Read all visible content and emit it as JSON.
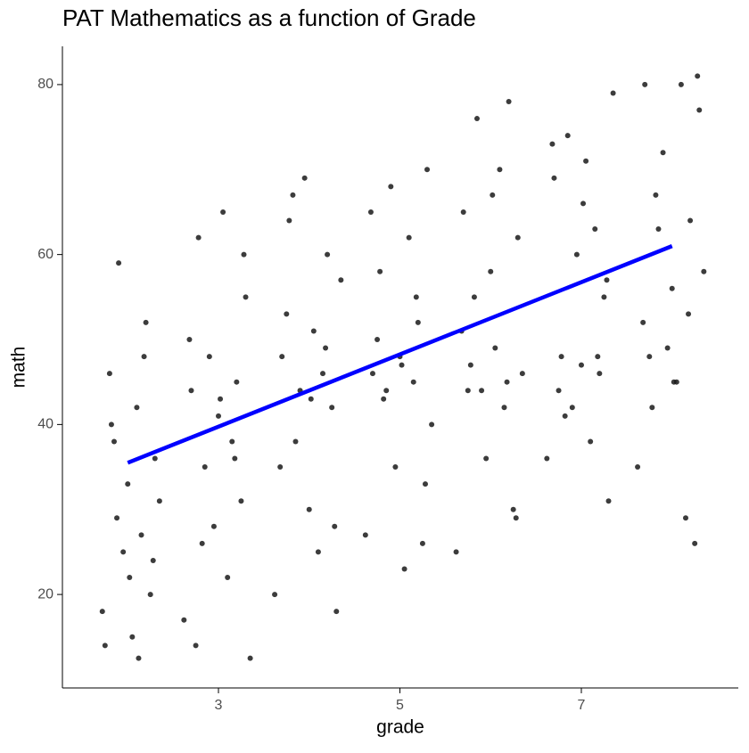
{
  "chart_data": {
    "type": "scatter",
    "title": "PAT Mathematics as a function of Grade",
    "x_label": "grade",
    "y_label": "math",
    "xlim": [
      1.28,
      8.73
    ],
    "ylim": [
      9,
      84.5
    ],
    "xticks": [
      3,
      5,
      7
    ],
    "yticks": [
      20,
      40,
      60,
      80
    ],
    "points": {
      "color": "#1a1a1a",
      "x": [
        1.72,
        1.8,
        1.85,
        1.9,
        1.95,
        2.0,
        2.05,
        2.1,
        2.15,
        2.2,
        2.25,
        2.3,
        2.35,
        1.75,
        1.88,
        2.02,
        2.18,
        2.28,
        1.82,
        2.12,
        2.62,
        2.7,
        2.78,
        2.85,
        2.9,
        2.95,
        3.0,
        3.05,
        3.1,
        3.15,
        3.2,
        3.25,
        3.3,
        3.35,
        2.68,
        2.82,
        3.02,
        3.18,
        3.28,
        2.75,
        3.62,
        3.7,
        3.78,
        3.85,
        3.9,
        3.95,
        4.0,
        4.05,
        4.1,
        4.15,
        4.2,
        4.25,
        4.3,
        4.35,
        3.68,
        3.82,
        4.02,
        4.18,
        4.28,
        3.75,
        4.62,
        4.7,
        4.78,
        4.85,
        4.9,
        4.95,
        5.0,
        5.05,
        5.1,
        5.15,
        5.2,
        5.25,
        5.3,
        5.35,
        4.68,
        4.82,
        5.02,
        5.18,
        5.28,
        4.75,
        5.62,
        5.7,
        5.78,
        5.85,
        5.9,
        5.95,
        6.0,
        6.05,
        6.1,
        6.15,
        6.2,
        6.25,
        6.3,
        6.35,
        5.68,
        5.82,
        6.02,
        6.18,
        6.28,
        5.75,
        6.62,
        6.7,
        6.78,
        6.85,
        6.9,
        6.95,
        7.0,
        7.05,
        7.1,
        7.15,
        7.2,
        7.25,
        7.3,
        7.35,
        6.68,
        6.82,
        7.02,
        7.18,
        7.28,
        6.75,
        7.62,
        7.7,
        7.78,
        7.85,
        7.9,
        7.95,
        8.0,
        8.05,
        8.1,
        8.15,
        8.2,
        8.25,
        8.3,
        8.35,
        7.68,
        7.82,
        8.02,
        8.18,
        8.28,
        7.75
      ],
      "y": [
        18,
        46,
        38,
        59,
        25,
        33,
        15,
        42,
        27,
        52,
        20,
        36,
        31,
        14,
        29,
        22,
        48,
        24,
        40,
        12.5,
        17,
        44,
        62,
        35,
        48,
        28,
        41,
        65,
        22,
        38,
        45,
        31,
        55,
        12.5,
        50,
        26,
        43,
        36,
        60,
        14,
        20,
        48,
        64,
        38,
        44,
        69,
        30,
        51,
        25,
        46,
        60,
        42,
        18,
        57,
        35,
        67,
        43,
        49,
        28,
        53,
        27,
        46,
        58,
        44,
        68,
        35,
        48,
        23,
        62,
        45,
        52,
        26,
        70,
        40,
        65,
        43,
        47,
        55,
        33,
        50,
        25,
        65,
        47,
        76,
        44,
        36,
        58,
        49,
        70,
        42,
        78,
        30,
        62,
        46,
        51,
        55,
        67,
        45,
        29,
        44,
        36,
        69,
        48,
        74,
        42,
        60,
        47,
        71,
        38,
        63,
        46,
        55,
        31,
        79,
        73,
        41,
        66,
        48,
        57,
        44,
        35,
        80,
        42,
        63,
        72,
        49,
        56,
        45,
        80,
        29,
        64,
        26,
        77,
        58,
        52,
        67,
        45,
        53,
        81,
        48
      ]
    },
    "fit": {
      "color": "#0000ff",
      "x": [
        2,
        8
      ],
      "y": [
        35.5,
        61
      ]
    }
  }
}
